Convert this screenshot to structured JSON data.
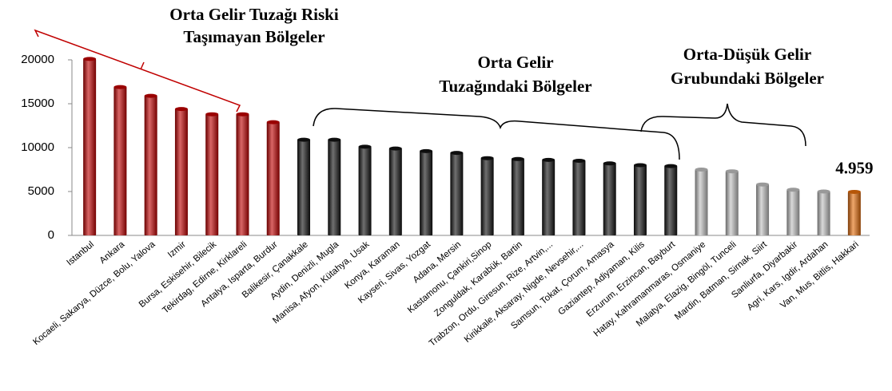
{
  "chart_data": {
    "type": "bar",
    "categories": [
      "Istanbul",
      "Ankara",
      "Kocaeli, Sakarya, Düzce, Bolu, Yalova",
      "Izmir",
      "Bursa, Eskisehir, Bilecik",
      "Tekirdag, Edirne, Kirklareli",
      "Antalya, Isparta, Burdur",
      "Balikesir, Çanakkale",
      "Aydin, Denizli, Mugla",
      "Manisa, Afyon, Kütahya, Usak",
      "Konya, Karaman",
      "Kayseri, Sivas, Yozgat",
      "Adana, Mersin",
      "Kastamonu, Çankiri,Sinop",
      "Zonguldak, Karabük, Bartin",
      "Trabzon, Ordu, Giresun, Rize, Artvin,...",
      "Kirikkale, Aksaray, Nigde, Nevsehir,...",
      "Samsun, Tokat, Çorum, Amasya",
      "Gaziantep, Adiyaman, Kilis",
      "Erzurum, Erzincan, Bayburt",
      "Hatay, Kahramanmaras, Osmaniye",
      "Malatya, Elazig, Bingöl, Tunceli",
      "Mardin, Batman, Sirnak, Siirt",
      "Sanliurfa, Diyarbakir",
      "Agri, Kars, Igdir, Ardahan",
      "Van, Mus, Bitlis, Hakkari"
    ],
    "values": [
      20100,
      16900,
      15900,
      14400,
      13800,
      13800,
      12900,
      10900,
      10900,
      10100,
      9900,
      9600,
      9400,
      8800,
      8700,
      8600,
      8500,
      8200,
      8000,
      7900,
      7500,
      7300,
      5800,
      5200,
      5000,
      4959
    ],
    "value_labels": [
      null,
      null,
      null,
      null,
      null,
      null,
      null,
      null,
      null,
      null,
      null,
      null,
      null,
      null,
      null,
      null,
      null,
      null,
      null,
      null,
      null,
      null,
      null,
      null,
      null,
      "4.959"
    ],
    "colors": [
      "#c00000",
      "#c00000",
      "#c00000",
      "#c00000",
      "#c00000",
      "#c00000",
      "#c00000",
      "#111111",
      "#111111",
      "#111111",
      "#111111",
      "#111111",
      "#111111",
      "#111111",
      "#111111",
      "#111111",
      "#111111",
      "#111111",
      "#111111",
      "#111111",
      "#bfbfbf",
      "#bfbfbf",
      "#bfbfbf",
      "#bfbfbf",
      "#bfbfbf",
      "#e46c0a"
    ],
    "ylim": [
      0,
      20000
    ],
    "yticks": [
      0,
      5000,
      10000,
      15000,
      20000
    ],
    "grid": false,
    "annotations": [
      {
        "lines": [
          "Orta Gelir Tuzağı Riski",
          "Taşımayan Bölgeler"
        ]
      },
      {
        "lines": [
          "Orta Gelir",
          "Tuzağındaki Bölgeler"
        ]
      },
      {
        "lines": [
          "Orta-Düşük Gelir",
          "Grubundaki Bölgeler"
        ]
      }
    ]
  }
}
